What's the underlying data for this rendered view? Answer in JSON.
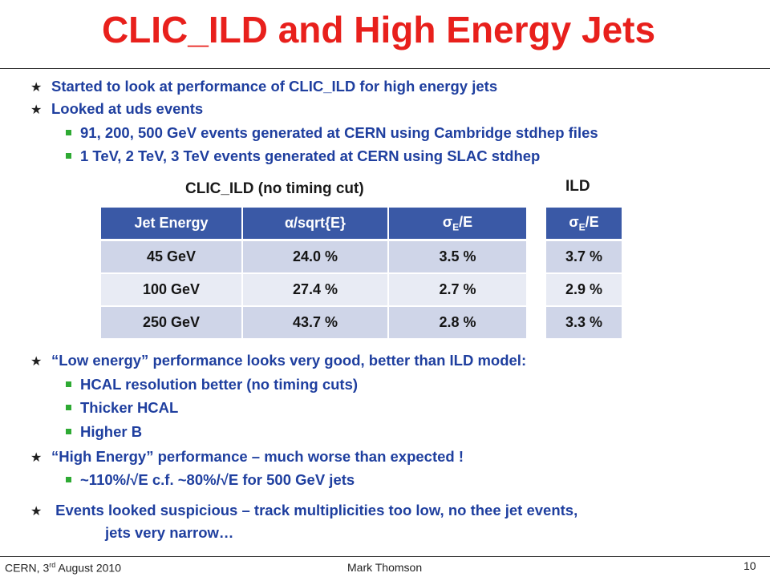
{
  "title": "CLIC_ILD and High Energy Jets",
  "bullets_top": [
    {
      "text": "Started to look at performance of CLIC_ILD for high energy jets"
    },
    {
      "text": "Looked at uds events"
    }
  ],
  "sub_bullets_top": [
    {
      "text": "91, 200, 500 GeV events generated at CERN using Cambridge stdhep files"
    },
    {
      "text": "1 TeV, 2 TeV, 3 TeV  events generated at CERN using SLAC stdhep"
    }
  ],
  "table_clic": {
    "caption": "CLIC_ILD (no timing cut)",
    "headers": [
      "Jet Energy",
      "α/sqrt{E}",
      "σE/E"
    ],
    "rows": [
      [
        "45 GeV",
        "24.0 %",
        "3.5 %"
      ],
      [
        "100 GeV",
        "27.4 %",
        "2.7 %"
      ],
      [
        "250 GeV",
        "43.7 %",
        "2.8 %"
      ]
    ]
  },
  "table_ild": {
    "caption": "ILD",
    "header": "σE/E",
    "rows": [
      "3.7 %",
      "2.9 %",
      "3.3 %"
    ]
  },
  "low_energy": {
    "text": "“Low energy” performance looks very good, better than ILD model:",
    "subs": [
      "HCAL resolution better (no timing cuts)",
      "Thicker HCAL",
      "Higher B"
    ]
  },
  "high_energy": {
    "text": "“High Energy” performance – much worse than expected !",
    "subs": [
      "~110%/√E c.f. ~80%/√E for 500 GeV jets"
    ]
  },
  "events": {
    "line1": "Events looked suspicious – track multiplicities too low, no thee jet events,",
    "line2": "jets very narrow…"
  },
  "footer": {
    "venue": "CERN, 3",
    "venue_sup": "rd",
    "venue_rest": " August 2010",
    "author": "Mark Thomson",
    "page": "10"
  },
  "colors": {
    "title": "#e8201c",
    "bullet_text": "#1f3f9f",
    "table_header": "#3a59a6",
    "sub_bullet": "#2eaa33"
  }
}
